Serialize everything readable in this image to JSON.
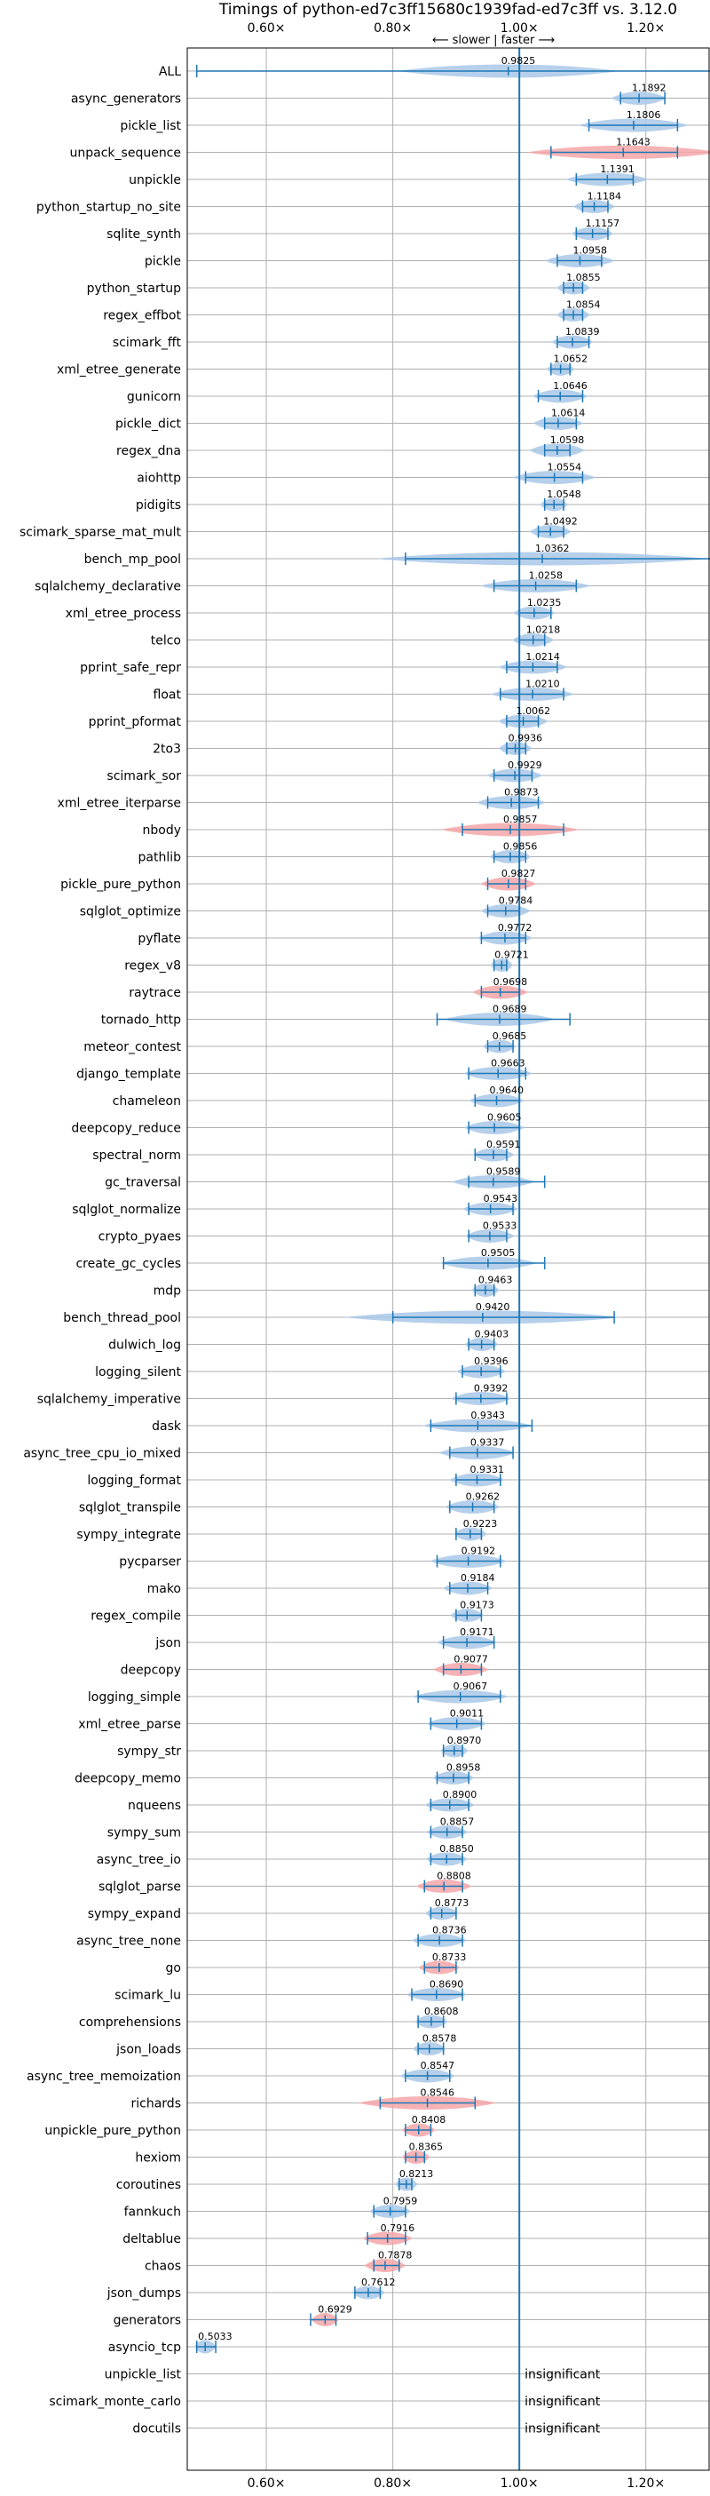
{
  "chart_data": {
    "type": "violin",
    "title": "Timings of python-ed7c3ff15680c1939fad-ed7c3ff vs. 3.12.0",
    "direction_label": "⟵ slower  |  faster ⟶",
    "xlim": [
      0.475,
      1.3
    ],
    "x_ticks": [
      0.6,
      0.8,
      1.0,
      1.2
    ],
    "x_tick_labels": [
      "0.60×",
      "0.80×",
      "1.00×",
      "1.20×"
    ],
    "reference_x": 1.0,
    "grid": true,
    "colors": {
      "faster": "#a9c8e8",
      "slower": "#f4a6a8",
      "whisker": "#1f77b4",
      "reference": "#1f77b4"
    },
    "insignificant_text": "insignificant",
    "benchmarks": [
      {
        "name": "ALL",
        "value": 0.9825,
        "label": "0.9825",
        "lo": 0.49,
        "hi": 1.32,
        "spread": 0.08,
        "color": "faster"
      },
      {
        "name": "async_generators",
        "value": 1.1892,
        "label": "1.1892",
        "lo": 1.16,
        "hi": 1.23,
        "spread": 0.02,
        "color": "faster"
      },
      {
        "name": "pickle_list",
        "value": 1.1806,
        "label": "1.1806",
        "lo": 1.11,
        "hi": 1.25,
        "spread": 0.04,
        "color": "faster"
      },
      {
        "name": "unpack_sequence",
        "value": 1.1643,
        "label": "1.1643",
        "lo": 1.05,
        "hi": 1.25,
        "spread": 0.07,
        "color": "slower"
      },
      {
        "name": "unpickle",
        "value": 1.1391,
        "label": "1.1391",
        "lo": 1.09,
        "hi": 1.18,
        "spread": 0.03,
        "color": "faster"
      },
      {
        "name": "python_startup_no_site",
        "value": 1.1184,
        "label": "1.1184",
        "lo": 1.1,
        "hi": 1.14,
        "spread": 0.015,
        "color": "faster"
      },
      {
        "name": "sqlite_synth",
        "value": 1.1157,
        "label": "1.1157",
        "lo": 1.09,
        "hi": 1.14,
        "spread": 0.015,
        "color": "faster"
      },
      {
        "name": "pickle",
        "value": 1.0958,
        "label": "1.0958",
        "lo": 1.06,
        "hi": 1.13,
        "spread": 0.025,
        "color": "faster"
      },
      {
        "name": "python_startup",
        "value": 1.0855,
        "label": "1.0855",
        "lo": 1.07,
        "hi": 1.1,
        "spread": 0.012,
        "color": "faster"
      },
      {
        "name": "regex_effbot",
        "value": 1.0854,
        "label": "1.0854",
        "lo": 1.07,
        "hi": 1.1,
        "spread": 0.012,
        "color": "faster"
      },
      {
        "name": "scimark_fft",
        "value": 1.0839,
        "label": "1.0839",
        "lo": 1.06,
        "hi": 1.11,
        "spread": 0.015,
        "color": "faster"
      },
      {
        "name": "xml_etree_generate",
        "value": 1.0652,
        "label": "1.0652",
        "lo": 1.05,
        "hi": 1.08,
        "spread": 0.01,
        "color": "faster"
      },
      {
        "name": "gunicorn",
        "value": 1.0646,
        "label": "1.0646",
        "lo": 1.03,
        "hi": 1.1,
        "spread": 0.02,
        "color": "faster"
      },
      {
        "name": "pickle_dict",
        "value": 1.0614,
        "label": "1.0614",
        "lo": 1.04,
        "hi": 1.09,
        "spread": 0.018,
        "color": "faster"
      },
      {
        "name": "regex_dna",
        "value": 1.0598,
        "label": "1.0598",
        "lo": 1.04,
        "hi": 1.08,
        "spread": 0.02,
        "color": "faster"
      },
      {
        "name": "aiohttp",
        "value": 1.0554,
        "label": "1.0554",
        "lo": 1.01,
        "hi": 1.1,
        "spread": 0.03,
        "color": "faster"
      },
      {
        "name": "pidigits",
        "value": 1.0548,
        "label": "1.0548",
        "lo": 1.04,
        "hi": 1.07,
        "spread": 0.01,
        "color": "faster"
      },
      {
        "name": "scimark_sparse_mat_mult",
        "value": 1.0492,
        "label": "1.0492",
        "lo": 1.03,
        "hi": 1.07,
        "spread": 0.015,
        "color": "faster"
      },
      {
        "name": "bench_mp_pool",
        "value": 1.0362,
        "label": "1.0362",
        "lo": 0.82,
        "hi": 1.32,
        "spread": 0.12,
        "color": "faster"
      },
      {
        "name": "sqlalchemy_declarative",
        "value": 1.0258,
        "label": "1.0258",
        "lo": 0.96,
        "hi": 1.09,
        "spread": 0.04,
        "color": "faster"
      },
      {
        "name": "xml_etree_process",
        "value": 1.0235,
        "label": "1.0235",
        "lo": 1.0,
        "hi": 1.05,
        "spread": 0.015,
        "color": "faster"
      },
      {
        "name": "telco",
        "value": 1.0218,
        "label": "1.0218",
        "lo": 1.0,
        "hi": 1.04,
        "spread": 0.015,
        "color": "faster"
      },
      {
        "name": "pprint_safe_repr",
        "value": 1.0214,
        "label": "1.0214",
        "lo": 0.98,
        "hi": 1.06,
        "spread": 0.025,
        "color": "faster"
      },
      {
        "name": "float",
        "value": 1.021,
        "label": "1.0210",
        "lo": 0.97,
        "hi": 1.07,
        "spread": 0.03,
        "color": "faster"
      },
      {
        "name": "pprint_pformat",
        "value": 1.0062,
        "label": "1.0062",
        "lo": 0.98,
        "hi": 1.03,
        "spread": 0.018,
        "color": "faster"
      },
      {
        "name": "2to3",
        "value": 0.9936,
        "label": "0.9936",
        "lo": 0.98,
        "hi": 1.01,
        "spread": 0.012,
        "color": "faster"
      },
      {
        "name": "scimark_sor",
        "value": 0.9929,
        "label": "0.9929",
        "lo": 0.96,
        "hi": 1.02,
        "spread": 0.02,
        "color": "faster"
      },
      {
        "name": "xml_etree_iterparse",
        "value": 0.9873,
        "label": "0.9873",
        "lo": 0.95,
        "hi": 1.03,
        "spread": 0.025,
        "color": "faster"
      },
      {
        "name": "nbody",
        "value": 0.9857,
        "label": "0.9857",
        "lo": 0.91,
        "hi": 1.07,
        "spread": 0.05,
        "color": "slower"
      },
      {
        "name": "pathlib",
        "value": 0.9856,
        "label": "0.9856",
        "lo": 0.96,
        "hi": 1.01,
        "spread": 0.015,
        "color": "faster"
      },
      {
        "name": "pickle_pure_python",
        "value": 0.9827,
        "label": "0.9827",
        "lo": 0.95,
        "hi": 1.01,
        "spread": 0.02,
        "color": "slower"
      },
      {
        "name": "sqlglot_optimize",
        "value": 0.9784,
        "label": "0.9784",
        "lo": 0.95,
        "hi": 1.0,
        "spread": 0.018,
        "color": "faster"
      },
      {
        "name": "pyflate",
        "value": 0.9772,
        "label": "0.9772",
        "lo": 0.94,
        "hi": 1.01,
        "spread": 0.02,
        "color": "faster"
      },
      {
        "name": "regex_v8",
        "value": 0.9721,
        "label": "0.9721",
        "lo": 0.96,
        "hi": 0.98,
        "spread": 0.008,
        "color": "faster"
      },
      {
        "name": "raytrace",
        "value": 0.9698,
        "label": "0.9698",
        "lo": 0.94,
        "hi": 1.0,
        "spread": 0.02,
        "color": "slower"
      },
      {
        "name": "tornado_http",
        "value": 0.9689,
        "label": "0.9689",
        "lo": 0.87,
        "hi": 1.08,
        "spread": 0.04,
        "color": "faster"
      },
      {
        "name": "meteor_contest",
        "value": 0.9685,
        "label": "0.9685",
        "lo": 0.95,
        "hi": 0.99,
        "spread": 0.012,
        "color": "faster"
      },
      {
        "name": "django_template",
        "value": 0.9663,
        "label": "0.9663",
        "lo": 0.92,
        "hi": 1.01,
        "spread": 0.025,
        "color": "faster"
      },
      {
        "name": "chameleon",
        "value": 0.964,
        "label": "0.9640",
        "lo": 0.93,
        "hi": 1.0,
        "spread": 0.02,
        "color": "faster"
      },
      {
        "name": "deepcopy_reduce",
        "value": 0.9605,
        "label": "0.9605",
        "lo": 0.92,
        "hi": 1.0,
        "spread": 0.022,
        "color": "faster"
      },
      {
        "name": "spectral_norm",
        "value": 0.9591,
        "label": "0.9591",
        "lo": 0.93,
        "hi": 0.98,
        "spread": 0.015,
        "color": "faster"
      },
      {
        "name": "gc_traversal",
        "value": 0.9589,
        "label": "0.9589",
        "lo": 0.92,
        "hi": 1.04,
        "spread": 0.03,
        "color": "faster"
      },
      {
        "name": "sqlglot_normalize",
        "value": 0.9543,
        "label": "0.9543",
        "lo": 0.92,
        "hi": 0.99,
        "spread": 0.02,
        "color": "faster"
      },
      {
        "name": "crypto_pyaes",
        "value": 0.9533,
        "label": "0.9533",
        "lo": 0.92,
        "hi": 0.98,
        "spread": 0.018,
        "color": "faster"
      },
      {
        "name": "create_gc_cycles",
        "value": 0.9505,
        "label": "0.9505",
        "lo": 0.88,
        "hi": 1.04,
        "spread": 0.035,
        "color": "faster"
      },
      {
        "name": "mdp",
        "value": 0.9463,
        "label": "0.9463",
        "lo": 0.93,
        "hi": 0.96,
        "spread": 0.01,
        "color": "faster"
      },
      {
        "name": "bench_thread_pool",
        "value": 0.942,
        "label": "0.9420",
        "lo": 0.8,
        "hi": 1.15,
        "spread": 0.1,
        "color": "faster"
      },
      {
        "name": "dulwich_log",
        "value": 0.9403,
        "label": "0.9403",
        "lo": 0.92,
        "hi": 0.96,
        "spread": 0.012,
        "color": "faster"
      },
      {
        "name": "logging_silent",
        "value": 0.9396,
        "label": "0.9396",
        "lo": 0.91,
        "hi": 0.97,
        "spread": 0.018,
        "color": "faster"
      },
      {
        "name": "sqlalchemy_imperative",
        "value": 0.9392,
        "label": "0.9392",
        "lo": 0.9,
        "hi": 0.98,
        "spread": 0.022,
        "color": "faster"
      },
      {
        "name": "dask",
        "value": 0.9343,
        "label": "0.9343",
        "lo": 0.86,
        "hi": 1.02,
        "spread": 0.04,
        "color": "faster"
      },
      {
        "name": "async_tree_cpu_io_mixed",
        "value": 0.9337,
        "label": "0.9337",
        "lo": 0.89,
        "hi": 0.99,
        "spread": 0.028,
        "color": "faster"
      },
      {
        "name": "logging_format",
        "value": 0.9331,
        "label": "0.9331",
        "lo": 0.9,
        "hi": 0.97,
        "spread": 0.02,
        "color": "faster"
      },
      {
        "name": "sqlglot_transpile",
        "value": 0.9262,
        "label": "0.9262",
        "lo": 0.89,
        "hi": 0.96,
        "spread": 0.02,
        "color": "faster"
      },
      {
        "name": "sympy_integrate",
        "value": 0.9223,
        "label": "0.9223",
        "lo": 0.9,
        "hi": 0.94,
        "spread": 0.012,
        "color": "faster"
      },
      {
        "name": "pycparser",
        "value": 0.9192,
        "label": "0.9192",
        "lo": 0.87,
        "hi": 0.97,
        "spread": 0.028,
        "color": "faster"
      },
      {
        "name": "mako",
        "value": 0.9184,
        "label": "0.9184",
        "lo": 0.89,
        "hi": 0.95,
        "spread": 0.018,
        "color": "faster"
      },
      {
        "name": "regex_compile",
        "value": 0.9173,
        "label": "0.9173",
        "lo": 0.9,
        "hi": 0.94,
        "spread": 0.012,
        "color": "faster"
      },
      {
        "name": "json",
        "value": 0.9171,
        "label": "0.9171",
        "lo": 0.88,
        "hi": 0.96,
        "spread": 0.022,
        "color": "faster"
      },
      {
        "name": "deepcopy",
        "value": 0.9077,
        "label": "0.9077",
        "lo": 0.88,
        "hi": 0.94,
        "spread": 0.02,
        "color": "slower"
      },
      {
        "name": "logging_simple",
        "value": 0.9067,
        "label": "0.9067",
        "lo": 0.84,
        "hi": 0.97,
        "spread": 0.035,
        "color": "faster"
      },
      {
        "name": "xml_etree_parse",
        "value": 0.9011,
        "label": "0.9011",
        "lo": 0.86,
        "hi": 0.94,
        "spread": 0.022,
        "color": "faster"
      },
      {
        "name": "sympy_str",
        "value": 0.897,
        "label": "0.8970",
        "lo": 0.88,
        "hi": 0.91,
        "spread": 0.01,
        "color": "faster"
      },
      {
        "name": "deepcopy_memo",
        "value": 0.8958,
        "label": "0.8958",
        "lo": 0.87,
        "hi": 0.92,
        "spread": 0.015,
        "color": "faster"
      },
      {
        "name": "nqueens",
        "value": 0.89,
        "label": "0.8900",
        "lo": 0.86,
        "hi": 0.92,
        "spread": 0.018,
        "color": "faster"
      },
      {
        "name": "sympy_sum",
        "value": 0.8857,
        "label": "0.8857",
        "lo": 0.86,
        "hi": 0.91,
        "spread": 0.015,
        "color": "faster"
      },
      {
        "name": "async_tree_io",
        "value": 0.885,
        "label": "0.8850",
        "lo": 0.86,
        "hi": 0.91,
        "spread": 0.015,
        "color": "faster"
      },
      {
        "name": "sqlglot_parse",
        "value": 0.8808,
        "label": "0.8808",
        "lo": 0.85,
        "hi": 0.91,
        "spread": 0.02,
        "color": "slower"
      },
      {
        "name": "sympy_expand",
        "value": 0.8773,
        "label": "0.8773",
        "lo": 0.86,
        "hi": 0.9,
        "spread": 0.012,
        "color": "faster"
      },
      {
        "name": "async_tree_none",
        "value": 0.8736,
        "label": "0.8736",
        "lo": 0.84,
        "hi": 0.91,
        "spread": 0.02,
        "color": "faster"
      },
      {
        "name": "go",
        "value": 0.8733,
        "label": "0.8733",
        "lo": 0.85,
        "hi": 0.9,
        "spread": 0.015,
        "color": "slower"
      },
      {
        "name": "scimark_lu",
        "value": 0.869,
        "label": "0.8690",
        "lo": 0.83,
        "hi": 0.91,
        "spread": 0.022,
        "color": "faster"
      },
      {
        "name": "comprehensions",
        "value": 0.8608,
        "label": "0.8608",
        "lo": 0.84,
        "hi": 0.88,
        "spread": 0.012,
        "color": "faster"
      },
      {
        "name": "json_loads",
        "value": 0.8578,
        "label": "0.8578",
        "lo": 0.84,
        "hi": 0.88,
        "spread": 0.012,
        "color": "faster"
      },
      {
        "name": "async_tree_memoization",
        "value": 0.8547,
        "label": "0.8547",
        "lo": 0.82,
        "hi": 0.89,
        "spread": 0.02,
        "color": "faster"
      },
      {
        "name": "richards",
        "value": 0.8546,
        "label": "0.8546",
        "lo": 0.78,
        "hi": 0.93,
        "spread": 0.05,
        "color": "slower"
      },
      {
        "name": "unpickle_pure_python",
        "value": 0.8408,
        "label": "0.8408",
        "lo": 0.82,
        "hi": 0.86,
        "spread": 0.012,
        "color": "slower"
      },
      {
        "name": "hexiom",
        "value": 0.8365,
        "label": "0.8365",
        "lo": 0.82,
        "hi": 0.85,
        "spread": 0.01,
        "color": "slower"
      },
      {
        "name": "coroutines",
        "value": 0.8213,
        "label": "0.8213",
        "lo": 0.81,
        "hi": 0.83,
        "spread": 0.008,
        "color": "faster"
      },
      {
        "name": "fannkuch",
        "value": 0.7959,
        "label": "0.7959",
        "lo": 0.77,
        "hi": 0.82,
        "spread": 0.015,
        "color": "faster"
      },
      {
        "name": "deltablue",
        "value": 0.7916,
        "label": "0.7916",
        "lo": 0.76,
        "hi": 0.82,
        "spread": 0.018,
        "color": "slower"
      },
      {
        "name": "chaos",
        "value": 0.7878,
        "label": "0.7878",
        "lo": 0.77,
        "hi": 0.81,
        "spread": 0.015,
        "color": "slower"
      },
      {
        "name": "json_dumps",
        "value": 0.7612,
        "label": "0.7612",
        "lo": 0.74,
        "hi": 0.78,
        "spread": 0.012,
        "color": "faster"
      },
      {
        "name": "generators",
        "value": 0.6929,
        "label": "0.6929",
        "lo": 0.67,
        "hi": 0.71,
        "spread": 0.01,
        "color": "slower"
      },
      {
        "name": "asyncio_tcp",
        "value": 0.5033,
        "label": "0.5033",
        "lo": 0.49,
        "hi": 0.52,
        "spread": 0.008,
        "color": "faster"
      },
      {
        "name": "unpickle_list",
        "value": null,
        "label": "",
        "insignificant": true
      },
      {
        "name": "scimark_monte_carlo",
        "value": null,
        "label": "",
        "insignificant": true
      },
      {
        "name": "docutils",
        "value": null,
        "label": "",
        "insignificant": true
      }
    ]
  }
}
